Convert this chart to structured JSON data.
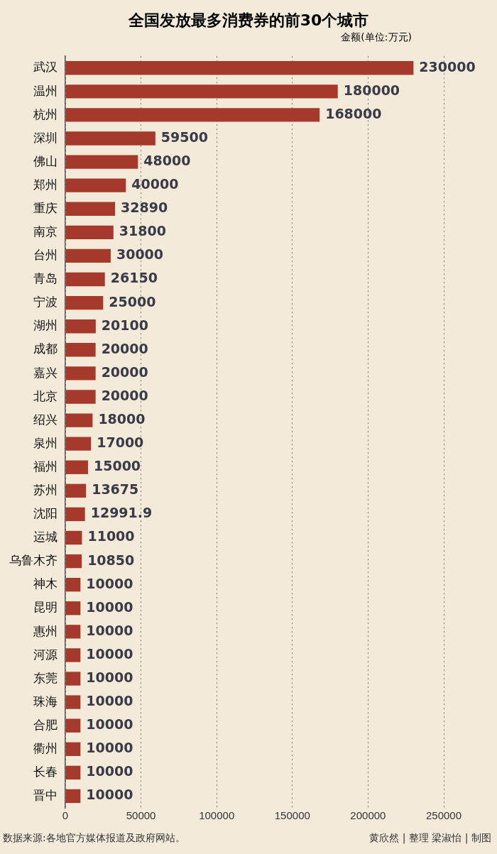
{
  "chart_data": {
    "type": "bar",
    "orientation": "horizontal",
    "title": "全国发放最多消费券的前30个城市",
    "subtitle": "金额(单位:万元)",
    "categories": [
      "武汉",
      "温州",
      "杭州",
      "深圳",
      "佛山",
      "郑州",
      "重庆",
      "南京",
      "台州",
      "青岛",
      "宁波",
      "湖州",
      "成都",
      "嘉兴",
      "北京",
      "绍兴",
      "泉州",
      "福州",
      "苏州",
      "沈阳",
      "运城",
      "乌鲁木齐",
      "神木",
      "昆明",
      "惠州",
      "河源",
      "东莞",
      "珠海",
      "合肥",
      "衢州",
      "长春",
      "晋中"
    ],
    "values": [
      230000,
      180000,
      168000,
      59500,
      48000,
      40000,
      32890,
      31800,
      30000,
      26150,
      25000,
      20100,
      20000,
      20000,
      20000,
      18000,
      17000,
      15000,
      13675,
      12991.9,
      11000,
      10850,
      10000,
      10000,
      10000,
      10000,
      10000,
      10000,
      10000,
      10000,
      10000,
      10000
    ],
    "color": "#a53a2c",
    "xlim": [
      0,
      250000
    ],
    "xticks": [
      0,
      50000,
      100000,
      150000,
      200000,
      250000
    ],
    "grid": "x",
    "line_style": "dotted",
    "data_labels": true,
    "legend": false,
    "annotations": [
      "数据来源:各地官方媒体报道及政府网站。",
      "黄欣然 | 整理   梁淑怡 | 制图"
    ]
  }
}
